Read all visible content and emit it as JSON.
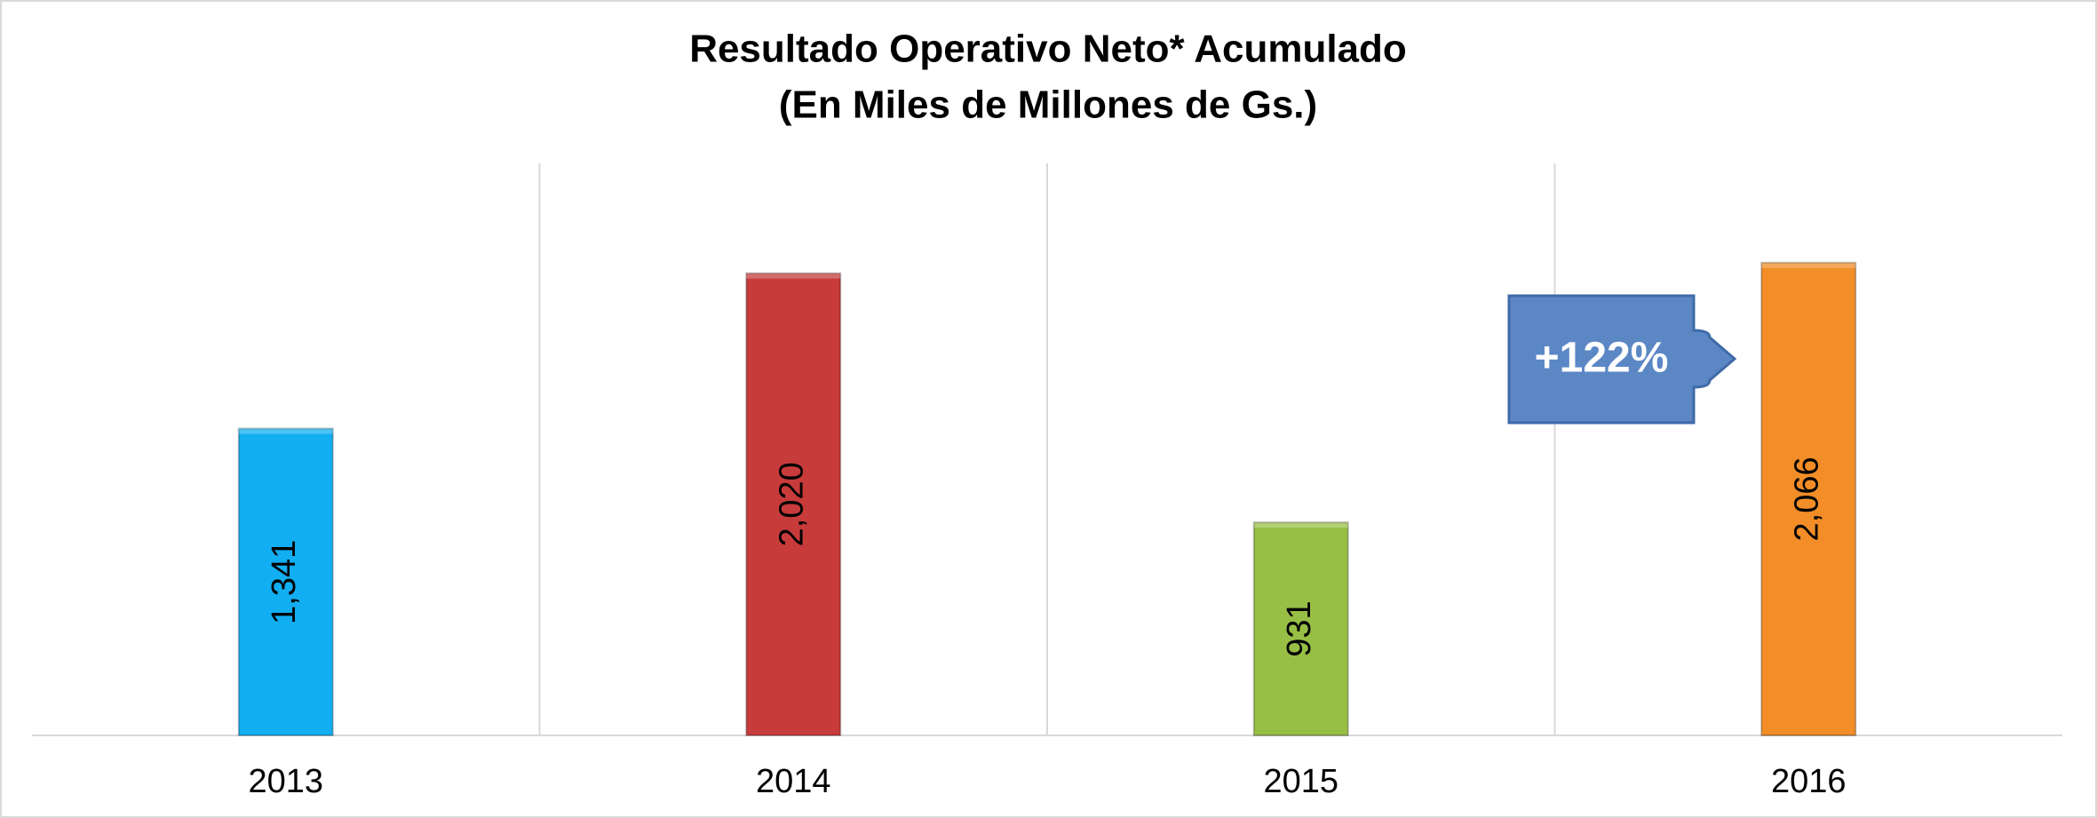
{
  "chart_data": {
    "type": "bar",
    "title": "Resultado Operativo Neto* Acumulado",
    "subtitle": "(En Miles de Millones de Gs.)",
    "categories": [
      "2013",
      "2014",
      "2015",
      "2016"
    ],
    "values": [
      1341,
      2020,
      931,
      2066
    ],
    "value_labels": [
      "1,341",
      "2,020",
      "931",
      "2,066"
    ],
    "colors": [
      "#12aef2",
      "#c73b3b",
      "#98bf45",
      "#f28d28"
    ],
    "ylim": [
      0,
      2500
    ],
    "annotation": "+122%"
  }
}
